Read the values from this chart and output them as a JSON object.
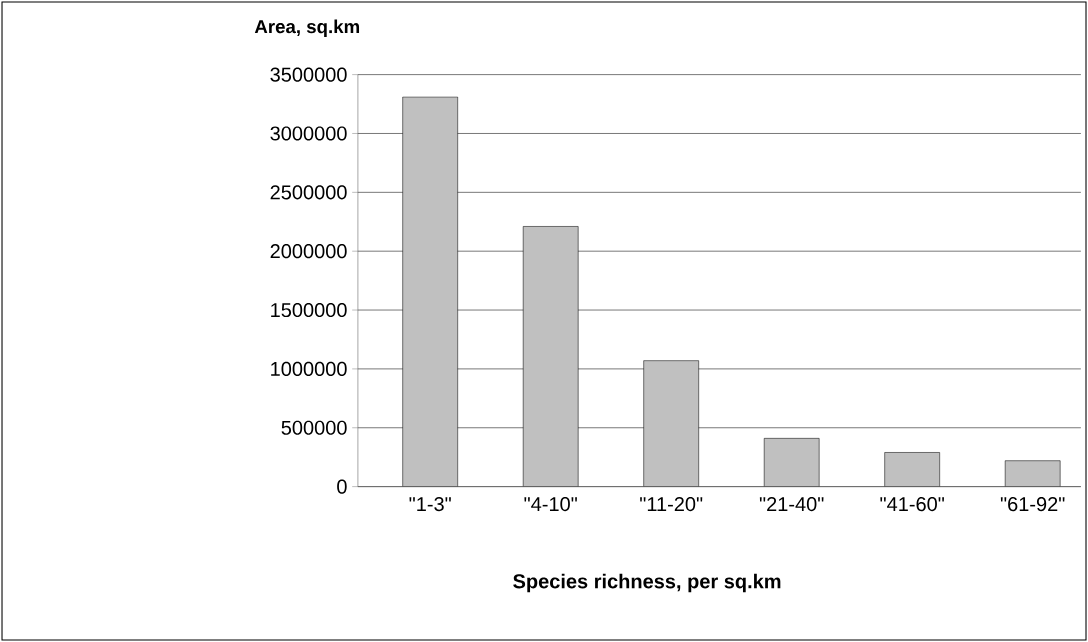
{
  "chart_data": {
    "type": "bar",
    "xlabel": "Species richness, per sq.km",
    "ylabel": "Area, sq.km",
    "categories": [
      "\"1-3\"",
      "\"4-10\"",
      "\"11-20\"",
      "\"21-40\"",
      "\"41-60\"",
      "\"61-92\""
    ],
    "values": [
      3310000,
      2210000,
      1070000,
      410000,
      290000,
      220000
    ],
    "color": "#c0c0c0",
    "ylim": [
      0,
      3500000
    ],
    "yticks": [
      0,
      500000,
      1000000,
      1500000,
      2000000,
      2500000,
      3000000,
      3500000
    ],
    "grid": "y"
  }
}
